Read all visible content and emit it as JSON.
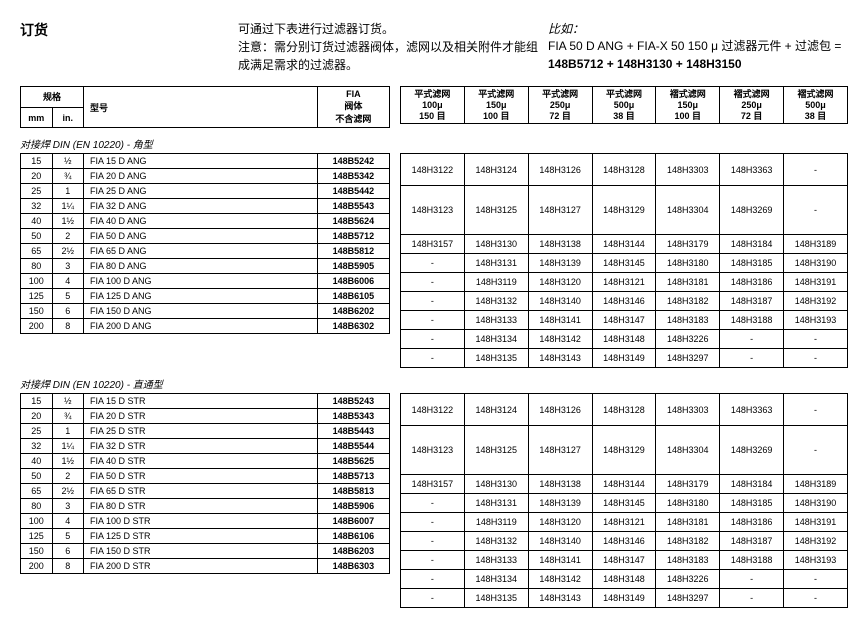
{
  "top": {
    "orderTitle": "订货",
    "intro1": "可通过下表进行过滤器订货。",
    "intro2": "注意：需分别订货过滤器阀体，滤网以及相关附件才能组成满足需求的过滤器。",
    "exampleTitle": "比如：",
    "exampleLine1": "FIA 50 D ANG + FIA-X 50 150 μ  过滤器元件 + 过滤包 = ",
    "exampleBold": "148B5712 + 148H3130 + 148H3150"
  },
  "leftHeader": {
    "spec": "规格",
    "mm": "mm",
    "in": "in.",
    "model": "型号",
    "fiaBody": "FIA\n阀体\n不含滤网"
  },
  "rightHeader": {
    "c1": "平式滤网\n100μ\n150 目",
    "c2": "平式滤网\n150μ\n100 目",
    "c3": "平式滤网\n250μ\n72 目",
    "c4": "平式滤网\n500μ\n38 目",
    "c5": "褶式滤网\n150μ\n100 目",
    "c6": "褶式滤网\n250μ\n72 目",
    "c7": "褶式滤网\n500μ\n38 目"
  },
  "sections": [
    {
      "title": "对接焊 DIN (EN 10220) - 角型",
      "rows": [
        {
          "mm": "15",
          "in": "½",
          "model": "FIA 15 D ANG",
          "code": "148B5242"
        },
        {
          "mm": "20",
          "in": "¾",
          "model": "FIA 20 D ANG",
          "code": "148B5342"
        },
        {
          "mm": "25",
          "in": "1",
          "model": "FIA 25 D ANG",
          "code": "148B5442"
        },
        {
          "mm": "32",
          "in": "1¼",
          "model": "FIA 32 D ANG",
          "code": "148B5543"
        },
        {
          "mm": "40",
          "in": "1½",
          "model": "FIA 40 D ANG",
          "code": "148B5624"
        },
        {
          "mm": "50",
          "in": "2",
          "model": "FIA 50 D ANG",
          "code": "148B5712"
        },
        {
          "mm": "65",
          "in": "2½",
          "model": "FIA 65 D ANG",
          "code": "148B5812"
        },
        {
          "mm": "80",
          "in": "3",
          "model": "FIA 80 D ANG",
          "code": "148B5905"
        },
        {
          "mm": "100",
          "in": "4",
          "model": "FIA 100 D ANG",
          "code": "148B6006"
        },
        {
          "mm": "125",
          "in": "5",
          "model": "FIA 125 D ANG",
          "code": "148B6105"
        },
        {
          "mm": "150",
          "in": "6",
          "model": "FIA 150 D ANG",
          "code": "148B6202"
        },
        {
          "mm": "200",
          "in": "8",
          "model": "FIA 200 D ANG",
          "code": "148B6302"
        }
      ],
      "mesh": [
        {
          "span": 2,
          "c": [
            "148H3122",
            "148H3124",
            "148H3126",
            "148H3128",
            "148H3303",
            "148H3363",
            "-"
          ]
        },
        {
          "span": 3,
          "c": [
            "148H3123",
            "148H3125",
            "148H3127",
            "148H3129",
            "148H3304",
            "148H3269",
            "-"
          ]
        },
        {
          "span": 1,
          "c": [
            "148H3157",
            "148H3130",
            "148H3138",
            "148H3144",
            "148H3179",
            "148H3184",
            "148H3189"
          ]
        },
        {
          "span": 1,
          "c": [
            "-",
            "148H3131",
            "148H3139",
            "148H3145",
            "148H3180",
            "148H3185",
            "148H3190"
          ]
        },
        {
          "span": 1,
          "c": [
            "-",
            "148H3119",
            "148H3120",
            "148H3121",
            "148H3181",
            "148H3186",
            "148H3191"
          ]
        },
        {
          "span": 1,
          "c": [
            "-",
            "148H3132",
            "148H3140",
            "148H3146",
            "148H3182",
            "148H3187",
            "148H3192"
          ]
        },
        {
          "span": 1,
          "c": [
            "-",
            "148H3133",
            "148H3141",
            "148H3147",
            "148H3183",
            "148H3188",
            "148H3193"
          ]
        },
        {
          "span": 1,
          "c": [
            "-",
            "148H3134",
            "148H3142",
            "148H3148",
            "148H3226",
            "-",
            "-"
          ]
        },
        {
          "span": 1,
          "c": [
            "-",
            "148H3135",
            "148H3143",
            "148H3149",
            "148H3297",
            "-",
            "-"
          ]
        }
      ]
    },
    {
      "title": "对接焊 DIN (EN 10220) - 直通型",
      "rows": [
        {
          "mm": "15",
          "in": "½",
          "model": "FIA 15 D STR",
          "code": "148B5243"
        },
        {
          "mm": "20",
          "in": "¾",
          "model": "FIA 20 D STR",
          "code": "148B5343"
        },
        {
          "mm": "25",
          "in": "1",
          "model": "FIA 25 D STR",
          "code": "148B5443"
        },
        {
          "mm": "32",
          "in": "1¼",
          "model": "FIA 32 D STR",
          "code": "148B5544"
        },
        {
          "mm": "40",
          "in": "1½",
          "model": "FIA 40 D STR",
          "code": "148B5625"
        },
        {
          "mm": "50",
          "in": "2",
          "model": "FIA 50 D STR",
          "code": "148B5713"
        },
        {
          "mm": "65",
          "in": "2½",
          "model": "FIA 65 D STR",
          "code": "148B5813"
        },
        {
          "mm": "80",
          "in": "3",
          "model": "FIA 80 D STR",
          "code": "148B5906"
        },
        {
          "mm": "100",
          "in": "4",
          "model": "FIA 100 D STR",
          "code": "148B6007"
        },
        {
          "mm": "125",
          "in": "5",
          "model": "FIA 125 D STR",
          "code": "148B6106"
        },
        {
          "mm": "150",
          "in": "6",
          "model": "FIA 150 D STR",
          "code": "148B6203"
        },
        {
          "mm": "200",
          "in": "8",
          "model": "FIA 200 D STR",
          "code": "148B6303"
        }
      ],
      "mesh": [
        {
          "span": 2,
          "c": [
            "148H3122",
            "148H3124",
            "148H3126",
            "148H3128",
            "148H3303",
            "148H3363",
            "-"
          ]
        },
        {
          "span": 3,
          "c": [
            "148H3123",
            "148H3125",
            "148H3127",
            "148H3129",
            "148H3304",
            "148H3269",
            "-"
          ]
        },
        {
          "span": 1,
          "c": [
            "148H3157",
            "148H3130",
            "148H3138",
            "148H3144",
            "148H3179",
            "148H3184",
            "148H3189"
          ]
        },
        {
          "span": 1,
          "c": [
            "-",
            "148H3131",
            "148H3139",
            "148H3145",
            "148H3180",
            "148H3185",
            "148H3190"
          ]
        },
        {
          "span": 1,
          "c": [
            "-",
            "148H3119",
            "148H3120",
            "148H3121",
            "148H3181",
            "148H3186",
            "148H3191"
          ]
        },
        {
          "span": 1,
          "c": [
            "-",
            "148H3132",
            "148H3140",
            "148H3146",
            "148H3182",
            "148H3187",
            "148H3192"
          ]
        },
        {
          "span": 1,
          "c": [
            "-",
            "148H3133",
            "148H3141",
            "148H3147",
            "148H3183",
            "148H3188",
            "148H3193"
          ]
        },
        {
          "span": 1,
          "c": [
            "-",
            "148H3134",
            "148H3142",
            "148H3148",
            "148H3226",
            "-",
            "-"
          ]
        },
        {
          "span": 1,
          "c": [
            "-",
            "148H3135",
            "148H3143",
            "148H3149",
            "148H3297",
            "-",
            "-"
          ]
        }
      ]
    }
  ]
}
